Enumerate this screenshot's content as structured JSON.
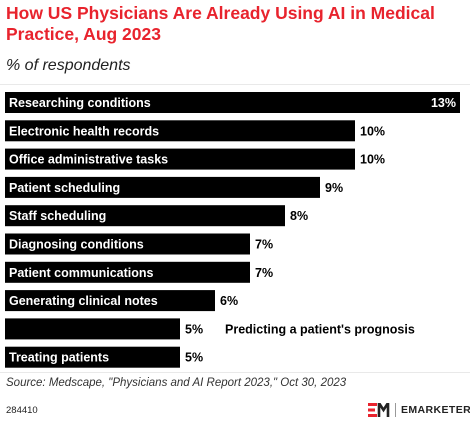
{
  "header": {
    "title": "How US Physicians Are Already Using AI in Medical Practice, Aug 2023",
    "subtitle": "% of respondents"
  },
  "chart_data": {
    "type": "bar",
    "orientation": "horizontal",
    "categories": [
      "Researching conditions",
      "Electronic health records",
      "Office administrative tasks",
      "Patient scheduling",
      "Staff scheduling",
      "Diagnosing conditions",
      "Patient communications",
      "Generating clinical notes",
      "Predicting a patient's prognosis",
      "Treating patients"
    ],
    "values": [
      13,
      10,
      10,
      9,
      8,
      7,
      7,
      6,
      5,
      5
    ],
    "value_labels": [
      "13%",
      "10%",
      "10%",
      "9%",
      "8%",
      "7%",
      "7%",
      "6%",
      "5%",
      "5%"
    ],
    "bar_color": "#000000",
    "label_color": "#ffffff",
    "xlim": [
      0,
      13
    ]
  },
  "footer": {
    "source": "Source: Medscape, \"Physicians and AI Report 2023,\" Oct 30, 2023",
    "chart_id": "284410",
    "brand": "EMARKETER",
    "brand_mark": "EM",
    "brand_color": "#e8232d"
  }
}
